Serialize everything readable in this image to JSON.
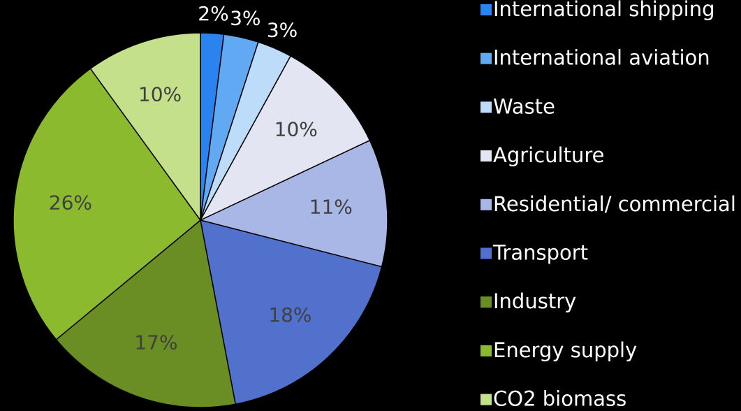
{
  "chart_data": {
    "type": "pie",
    "categories": [
      "International shipping",
      "International aviation",
      "Waste",
      "Agriculture",
      "Residential/ commercial",
      "Transport",
      "Industry",
      "Energy supply",
      "CO2 biomass"
    ],
    "values": [
      2,
      3,
      3,
      10,
      11,
      18,
      17,
      26,
      10
    ],
    "value_labels": [
      "2%",
      "3%",
      "3%",
      "10%",
      "11%",
      "18%",
      "17%",
      "26%",
      "10%"
    ],
    "colors": [
      "#2b83f0",
      "#62a9f3",
      "#bcdcfa",
      "#e3e5f3",
      "#a8b7e5",
      "#5271cd",
      "#6b8e24",
      "#8cba2e",
      "#c4e08a"
    ],
    "legend": "right"
  }
}
